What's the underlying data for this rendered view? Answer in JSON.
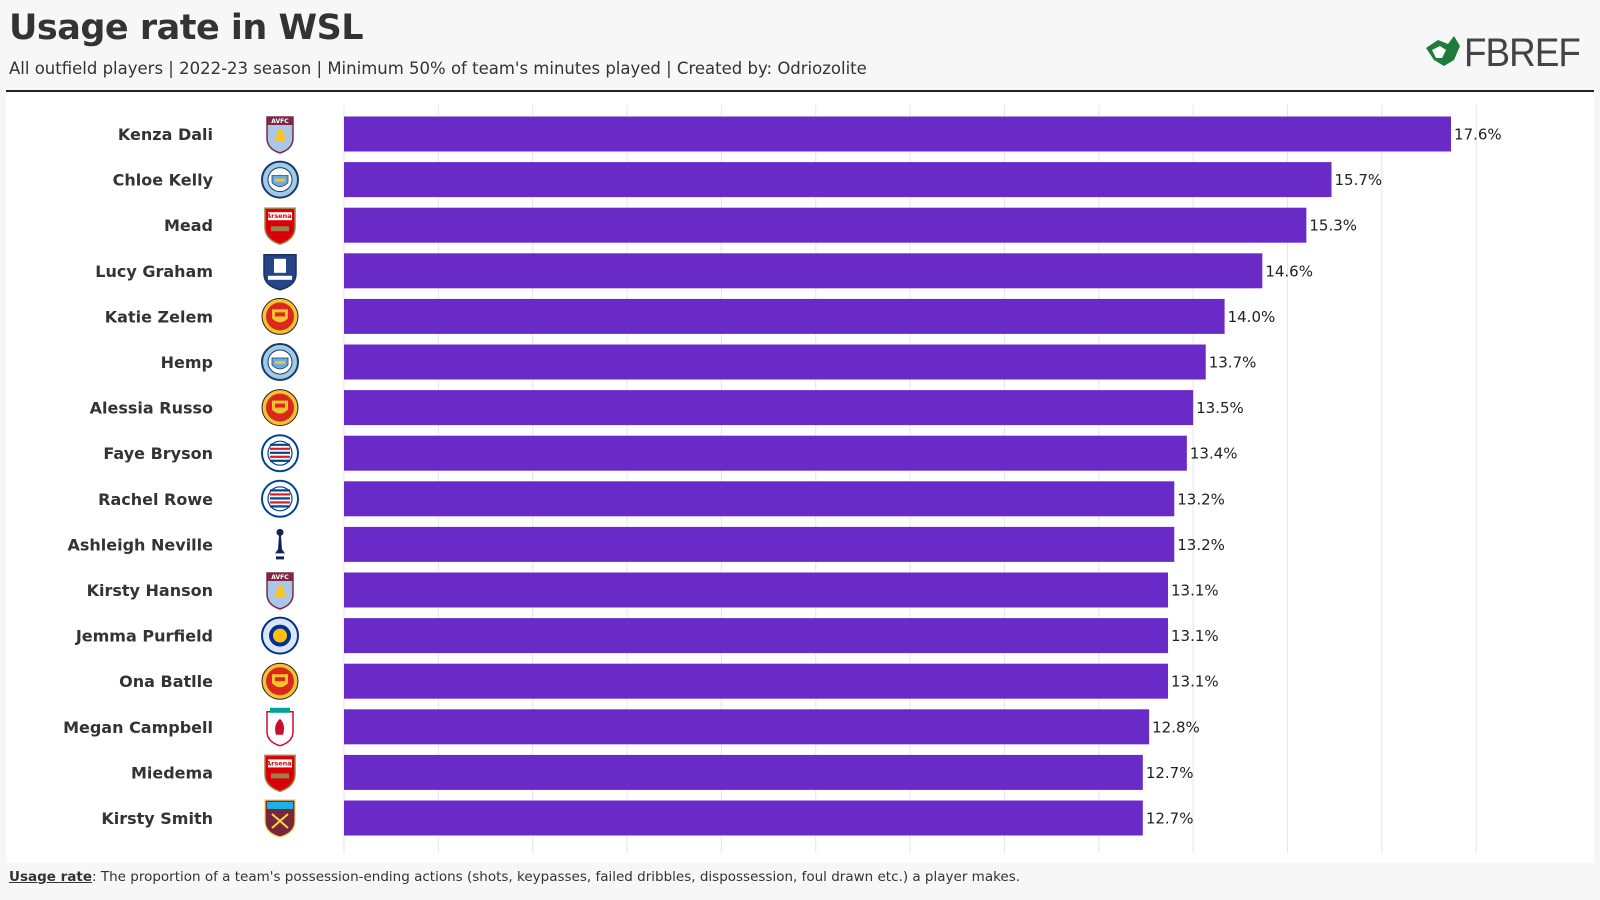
{
  "title": "Usage rate in WSL",
  "subtitle": "All outfield players | 2022-23 season | Minimum 50% of team's minutes played | Created by: Odriozolite",
  "logo_text": "FBREF",
  "footnote": {
    "term": "Usage rate",
    "text": ": The proportion of a team's possession-ending actions (shots, keypasses, failed dribbles, dispossession, foul drawn etc.) a player makes."
  },
  "colors": {
    "bar": "#6a2ac8",
    "grid": "#e6e6e6",
    "logo_green": "#1f7a3c"
  },
  "chart_data": {
    "type": "bar",
    "orientation": "horizontal",
    "value_suffix": "%",
    "xlim": [
      0,
      18.5
    ],
    "grid": true,
    "categories": [
      "Kenza Dali",
      "Chloe Kelly",
      "Mead",
      "Lucy Graham",
      "Katie Zelem",
      "Hemp",
      "Alessia Russo",
      "Faye Bryson",
      "Rachel Rowe",
      "Ashleigh Neville",
      "Kirsty Hanson",
      "Jemma Purfield",
      "Ona Batlle",
      "Megan Campbell",
      "Miedema",
      "Kirsty Smith"
    ],
    "values": [
      17.6,
      15.7,
      15.3,
      14.6,
      14.0,
      13.7,
      13.5,
      13.4,
      13.2,
      13.2,
      13.1,
      13.1,
      13.1,
      12.8,
      12.7,
      12.7
    ],
    "value_labels": [
      "17.6%",
      "15.7%",
      "15.3%",
      "14.6%",
      "14.0%",
      "13.7%",
      "13.5%",
      "13.4%",
      "13.2%",
      "13.2%",
      "13.1%",
      "13.1%",
      "13.1%",
      "12.8%",
      "12.7%",
      "12.7%"
    ],
    "clubs": [
      "aston-villa",
      "man-city",
      "arsenal",
      "everton",
      "man-united",
      "man-city",
      "man-united",
      "reading",
      "reading",
      "tottenham",
      "aston-villa",
      "leicester",
      "man-united",
      "liverpool",
      "arsenal",
      "west-ham"
    ],
    "crest_texts": {
      "aston-villa": "AVFC",
      "arsenal": "Arsenal"
    }
  }
}
